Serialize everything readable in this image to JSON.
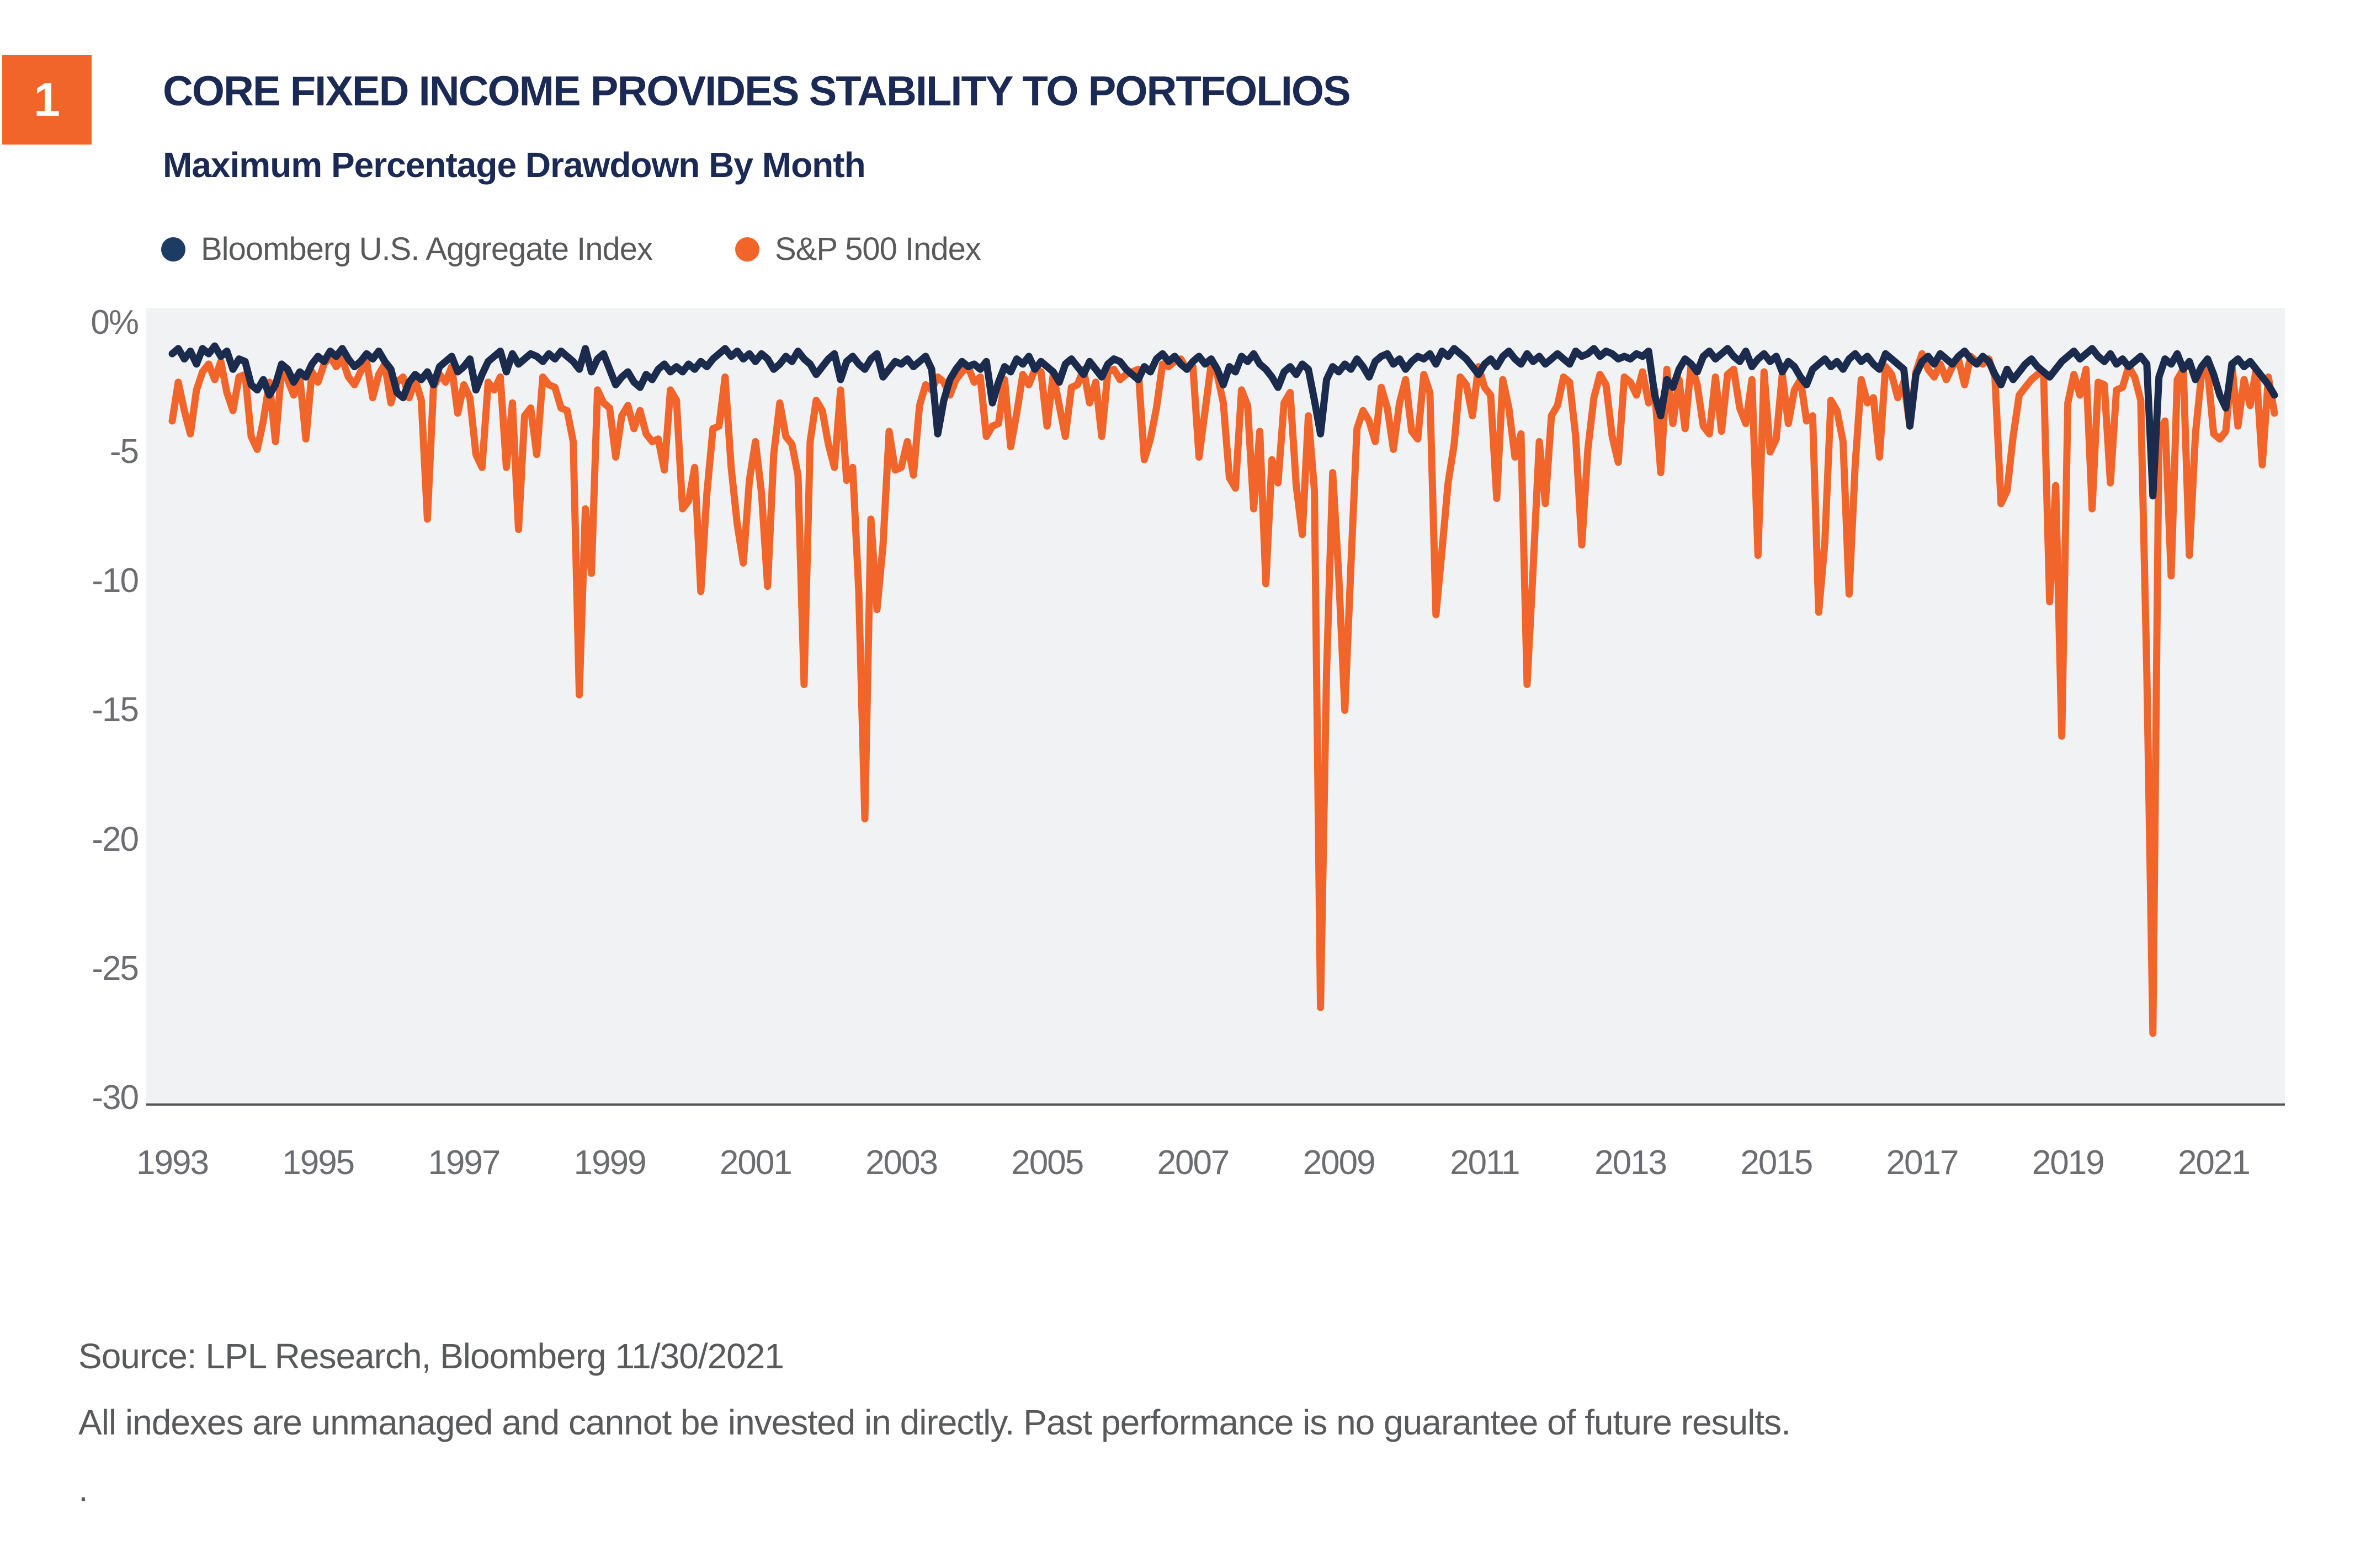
{
  "badge": {
    "number": "1",
    "color": "#F2652A"
  },
  "header": {
    "title": "CORE FIXED INCOME PROVIDES STABILITY TO PORTFOLIOS",
    "title_color": "#1B2A55",
    "subtitle": "Maximum Percentage Drawdown By Month"
  },
  "legend": [
    {
      "label": "Bloomberg U.S. Aggregate Index",
      "color": "#1C3C64"
    },
    {
      "label": "S&P 500 Index",
      "color": "#F2652A"
    }
  ],
  "footer": {
    "source": "Source: LPL Research, Bloomberg 11/30/2021",
    "disclaimer": "All indexes are unmanaged and cannot be invested in directly. Past performance is no guarantee of future results.",
    "trailing_dot": "."
  },
  "chart_data": {
    "type": "line",
    "title": "Maximum Percentage Drawdown By Month",
    "x_start": "1993-01",
    "x_end": "2021-11",
    "frequency": "monthly",
    "grid": false,
    "legend_position": "top-left",
    "plot_background": "#F1F2F4",
    "ylim": [
      -30,
      0.6
    ],
    "y_tick_labels": [
      "0%",
      "-5",
      "-10",
      "-15",
      "-20",
      "-25",
      "-30"
    ],
    "y_tick_values": [
      0,
      -5,
      -10,
      -15,
      -20,
      -25,
      -30
    ],
    "x_tick_labels": [
      "1993",
      "1995",
      "1997",
      "1999",
      "2001",
      "2003",
      "2005",
      "2007",
      "2009",
      "2011",
      "2013",
      "2015",
      "2017",
      "2019",
      "2021"
    ],
    "x_tick_years": [
      1993,
      1995,
      1997,
      1999,
      2001,
      2003,
      2005,
      2007,
      2009,
      2011,
      2013,
      2015,
      2017,
      2019,
      2021
    ],
    "series": [
      {
        "name": "Bloomberg U.S. Aggregate Index",
        "color": "#1B2B4D",
        "values": [
          -1.2,
          -1.0,
          -1.4,
          -1.1,
          -1.6,
          -1.0,
          -1.2,
          -0.9,
          -1.3,
          -1.1,
          -1.8,
          -1.4,
          -1.5,
          -2.4,
          -2.6,
          -2.2,
          -2.8,
          -2.4,
          -1.6,
          -1.8,
          -2.3,
          -1.9,
          -2.1,
          -1.6,
          -1.3,
          -1.5,
          -1.1,
          -1.3,
          -1.0,
          -1.4,
          -1.7,
          -1.5,
          -1.2,
          -1.4,
          -1.1,
          -1.5,
          -1.8,
          -2.7,
          -2.9,
          -2.3,
          -2.0,
          -2.2,
          -1.9,
          -2.4,
          -1.7,
          -1.5,
          -1.3,
          -1.9,
          -1.7,
          -1.4,
          -2.6,
          -2.0,
          -1.5,
          -1.3,
          -1.1,
          -1.9,
          -1.2,
          -1.6,
          -1.4,
          -1.2,
          -1.3,
          -1.5,
          -1.2,
          -1.4,
          -1.1,
          -1.3,
          -1.5,
          -1.8,
          -1.0,
          -1.9,
          -1.4,
          -1.2,
          -1.8,
          -2.4,
          -2.1,
          -1.9,
          -2.3,
          -2.5,
          -2.0,
          -2.2,
          -1.8,
          -1.6,
          -1.9,
          -1.7,
          -1.9,
          -1.6,
          -1.8,
          -1.5,
          -1.7,
          -1.4,
          -1.2,
          -1.0,
          -1.3,
          -1.1,
          -1.4,
          -1.2,
          -1.5,
          -1.2,
          -1.4,
          -1.8,
          -1.6,
          -1.3,
          -1.5,
          -1.1,
          -1.4,
          -1.6,
          -2.0,
          -1.7,
          -1.4,
          -1.2,
          -2.2,
          -1.5,
          -1.3,
          -1.6,
          -1.8,
          -1.4,
          -1.2,
          -2.1,
          -1.8,
          -1.5,
          -1.6,
          -1.4,
          -1.7,
          -1.5,
          -1.3,
          -1.8,
          -4.3,
          -3.0,
          -2.2,
          -1.8,
          -1.5,
          -1.7,
          -1.6,
          -1.8,
          -1.5,
          -3.1,
          -2.3,
          -1.7,
          -1.9,
          -1.4,
          -1.6,
          -1.3,
          -1.8,
          -1.5,
          -1.7,
          -1.9,
          -2.3,
          -1.6,
          -1.4,
          -1.7,
          -2.0,
          -1.5,
          -1.8,
          -2.1,
          -1.6,
          -1.4,
          -1.5,
          -1.8,
          -2.0,
          -2.2,
          -1.7,
          -1.9,
          -1.4,
          -1.2,
          -1.5,
          -1.3,
          -1.6,
          -1.8,
          -1.5,
          -1.3,
          -1.6,
          -1.4,
          -1.8,
          -2.4,
          -1.7,
          -1.9,
          -1.3,
          -1.5,
          -1.2,
          -1.6,
          -1.8,
          -2.1,
          -2.5,
          -1.9,
          -1.7,
          -2.0,
          -1.6,
          -1.8,
          -3.0,
          -4.3,
          -2.2,
          -1.7,
          -1.9,
          -1.6,
          -1.8,
          -1.4,
          -1.7,
          -2.1,
          -1.5,
          -1.3,
          -1.2,
          -1.6,
          -1.4,
          -1.8,
          -1.5,
          -1.3,
          -1.4,
          -1.2,
          -1.6,
          -1.1,
          -1.3,
          -1.0,
          -1.2,
          -1.4,
          -1.7,
          -2.0,
          -1.6,
          -1.4,
          -1.7,
          -1.3,
          -1.1,
          -1.4,
          -1.6,
          -1.2,
          -1.5,
          -1.3,
          -1.6,
          -1.4,
          -1.2,
          -1.4,
          -1.6,
          -1.1,
          -1.3,
          -1.2,
          -1.0,
          -1.3,
          -1.1,
          -1.2,
          -1.4,
          -1.3,
          -1.4,
          -1.2,
          -1.3,
          -1.1,
          -2.8,
          -3.6,
          -2.2,
          -2.5,
          -1.8,
          -1.4,
          -1.6,
          -1.9,
          -1.3,
          -1.1,
          -1.4,
          -1.2,
          -1.0,
          -1.3,
          -1.5,
          -1.1,
          -1.7,
          -1.4,
          -1.2,
          -1.5,
          -1.3,
          -1.9,
          -1.5,
          -1.7,
          -2.1,
          -2.4,
          -1.8,
          -1.6,
          -1.4,
          -1.7,
          -1.5,
          -1.8,
          -1.4,
          -1.2,
          -1.5,
          -1.3,
          -1.6,
          -1.8,
          -1.2,
          -1.4,
          -1.6,
          -1.8,
          -4.0,
          -2.0,
          -1.5,
          -1.3,
          -1.6,
          -1.2,
          -1.4,
          -1.6,
          -1.3,
          -1.1,
          -1.4,
          -1.6,
          -1.3,
          -1.5,
          -2.0,
          -2.4,
          -1.8,
          -2.2,
          -1.9,
          -1.6,
          -1.4,
          -1.7,
          -1.9,
          -2.1,
          -1.8,
          -1.5,
          -1.3,
          -1.1,
          -1.4,
          -1.2,
          -1.0,
          -1.3,
          -1.5,
          -1.2,
          -1.6,
          -1.4,
          -1.7,
          -1.5,
          -1.3,
          -1.6,
          -6.7,
          -2.1,
          -1.4,
          -1.6,
          -1.2,
          -1.8,
          -1.5,
          -2.2,
          -1.7,
          -1.4,
          -2.0,
          -2.8,
          -3.3,
          -1.6,
          -1.4,
          -1.7,
          -1.5,
          -1.8,
          -2.1,
          -2.4,
          -2.8
        ]
      },
      {
        "name": "S&P 500 Index",
        "color": "#F2652A",
        "values": [
          -3.8,
          -2.3,
          -3.4,
          -4.3,
          -2.6,
          -1.9,
          -1.6,
          -2.2,
          -1.5,
          -2.7,
          -3.4,
          -2.1,
          -2.0,
          -4.4,
          -4.9,
          -3.8,
          -2.3,
          -4.6,
          -1.8,
          -2.2,
          -2.8,
          -2.1,
          -4.5,
          -1.9,
          -2.3,
          -1.6,
          -1.3,
          -1.7,
          -1.4,
          -2.1,
          -2.4,
          -1.9,
          -1.5,
          -2.9,
          -2.0,
          -1.6,
          -3.1,
          -2.3,
          -2.1,
          -2.9,
          -2.2,
          -3.0,
          -7.6,
          -2.5,
          -2.0,
          -2.3,
          -1.7,
          -3.5,
          -2.4,
          -2.9,
          -5.1,
          -5.6,
          -2.3,
          -2.6,
          -2.1,
          -5.6,
          -3.1,
          -8.0,
          -3.6,
          -3.3,
          -5.1,
          -2.1,
          -2.4,
          -2.5,
          -3.3,
          -3.4,
          -4.6,
          -14.4,
          -7.2,
          -9.7,
          -2.6,
          -3.1,
          -3.3,
          -5.2,
          -3.6,
          -3.2,
          -4.1,
          -3.4,
          -4.3,
          -4.6,
          -4.5,
          -5.7,
          -2.6,
          -3.0,
          -7.2,
          -6.9,
          -5.6,
          -10.4,
          -6.6,
          -4.1,
          -4.0,
          -2.1,
          -5.6,
          -7.8,
          -9.3,
          -6.1,
          -4.6,
          -6.6,
          -10.2,
          -5.1,
          -3.1,
          -4.4,
          -4.7,
          -5.9,
          -14.0,
          -4.6,
          -3.0,
          -3.4,
          -4.7,
          -5.6,
          -2.6,
          -6.1,
          -5.6,
          -10.4,
          -19.2,
          -7.6,
          -11.1,
          -8.6,
          -4.2,
          -5.7,
          -5.6,
          -4.6,
          -5.9,
          -3.2,
          -2.4,
          -2.6,
          -2.1,
          -2.3,
          -2.8,
          -2.2,
          -1.9,
          -1.7,
          -2.3,
          -2.1,
          -4.4,
          -4.0,
          -3.9,
          -2.2,
          -4.8,
          -3.5,
          -2.0,
          -2.4,
          -1.8,
          -1.9,
          -4.0,
          -2.0,
          -3.2,
          -4.4,
          -2.5,
          -2.4,
          -1.8,
          -3.1,
          -2.3,
          -4.4,
          -1.9,
          -1.8,
          -2.2,
          -2.0,
          -1.9,
          -1.8,
          -5.3,
          -4.5,
          -3.3,
          -1.6,
          -1.7,
          -1.5,
          -1.4,
          -1.8,
          -1.7,
          -5.2,
          -3.4,
          -1.6,
          -2.0,
          -3.1,
          -6.0,
          -6.4,
          -2.6,
          -3.2,
          -7.2,
          -4.2,
          -10.1,
          -5.3,
          -6.2,
          -3.1,
          -2.7,
          -6.3,
          -8.2,
          -3.6,
          -6.5,
          -26.5,
          -13.5,
          -5.8,
          -9.8,
          -15.0,
          -9.4,
          -4.1,
          -3.4,
          -3.8,
          -4.6,
          -2.5,
          -3.3,
          -4.9,
          -3.1,
          -2.2,
          -4.2,
          -4.5,
          -2.0,
          -2.7,
          -11.3,
          -8.8,
          -6.2,
          -4.7,
          -2.1,
          -2.4,
          -3.6,
          -1.7,
          -2.5,
          -2.8,
          -6.8,
          -2.2,
          -3.3,
          -5.2,
          -4.3,
          -14.0,
          -9.5,
          -4.6,
          -7.0,
          -3.6,
          -3.2,
          -2.1,
          -2.3,
          -4.4,
          -8.6,
          -4.9,
          -2.9,
          -2.0,
          -2.4,
          -4.4,
          -5.4,
          -2.1,
          -2.3,
          -2.8,
          -1.9,
          -3.1,
          -2.6,
          -5.8,
          -1.8,
          -3.9,
          -2.2,
          -4.1,
          -1.6,
          -2.4,
          -4.0,
          -4.3,
          -2.1,
          -4.2,
          -2.0,
          -1.8,
          -3.3,
          -3.9,
          -2.2,
          -9.0,
          -1.9,
          -5.0,
          -4.5,
          -2.0,
          -3.9,
          -2.6,
          -2.2,
          -3.8,
          -3.6,
          -11.2,
          -8.5,
          -3.0,
          -3.4,
          -4.6,
          -10.5,
          -5.5,
          -2.2,
          -3.1,
          -2.9,
          -5.2,
          -1.7,
          -2.0,
          -2.9,
          -2.3,
          -4.0,
          -1.9,
          -1.2,
          -1.8,
          -2.1,
          -1.6,
          -2.2,
          -1.7,
          -1.4,
          -2.4,
          -1.3,
          -1.5,
          -1.6,
          -1.4,
          -2.1,
          -7.0,
          -6.5,
          -4.4,
          -2.8,
          -2.5,
          -2.2,
          -2.0,
          -1.9,
          -10.8,
          -6.3,
          -16.0,
          -3.1,
          -2.0,
          -2.8,
          -1.8,
          -7.2,
          -2.3,
          -2.4,
          -6.2,
          -2.6,
          -2.5,
          -1.7,
          -2.1,
          -3.0,
          -13.5,
          -27.5,
          -4.2,
          -3.8,
          -9.8,
          -2.2,
          -1.8,
          -9.0,
          -4.3,
          -2.0,
          -1.8,
          -4.3,
          -4.5,
          -4.2,
          -1.6,
          -4.0,
          -2.2,
          -3.2,
          -1.8,
          -5.5,
          -2.1,
          -3.5
        ]
      }
    ]
  }
}
